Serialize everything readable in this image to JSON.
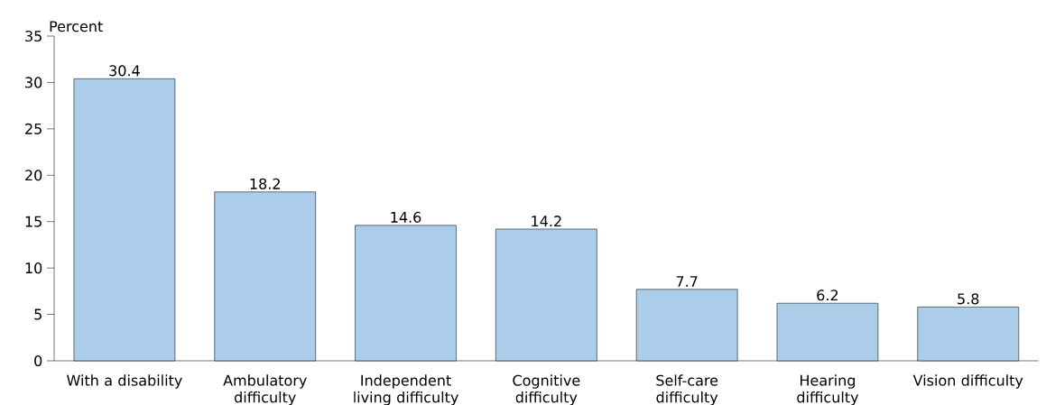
{
  "chart_data": {
    "type": "bar",
    "ylabel": "Percent",
    "categories": [
      "With a disability",
      "Ambulatory difficulty",
      "Independent living difficulty",
      "Cognitive difficulty",
      "Self-care difficulty",
      "Hearing difficulty",
      "Vision difficulty"
    ],
    "values": [
      30.4,
      18.2,
      14.6,
      14.2,
      7.7,
      6.2,
      5.8
    ],
    "color": "#abcdea",
    "ylim": [
      0,
      35
    ],
    "yticks": [
      0,
      5,
      10,
      15,
      20,
      25,
      30,
      35
    ],
    "data_labels": true,
    "grid": false
  }
}
